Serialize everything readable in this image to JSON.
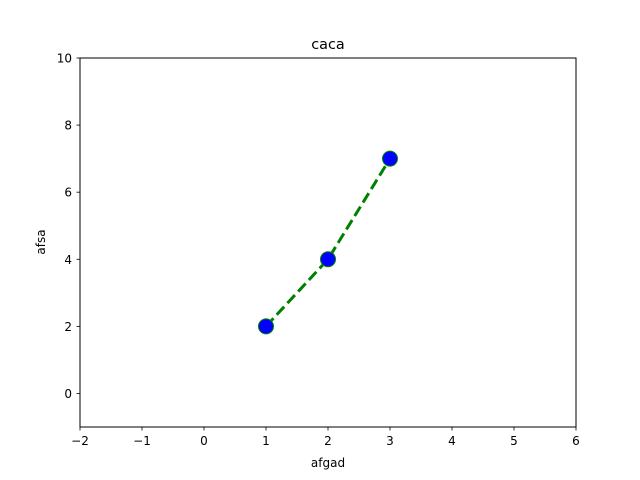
{
  "chart_data": {
    "type": "line",
    "title": "caca",
    "xlabel": "afgad",
    "ylabel": "afsa",
    "xlim": [
      -2,
      6
    ],
    "ylim": [
      -1,
      10
    ],
    "xticks": [
      -2,
      -1,
      0,
      1,
      2,
      3,
      4,
      5,
      6
    ],
    "xtick_labels": [
      "−2",
      "−1",
      "0",
      "1",
      "2",
      "3",
      "4",
      "5",
      "6"
    ],
    "yticks": [
      0,
      2,
      4,
      6,
      8,
      10
    ],
    "ytick_labels": [
      "0",
      "2",
      "4",
      "6",
      "8",
      "10"
    ],
    "grid": false,
    "series": [
      {
        "x": [
          1,
          2,
          3
        ],
        "y": [
          2,
          4,
          7
        ],
        "line_color": "#008000",
        "line_style": "dashed",
        "marker": "circle",
        "marker_color": "#0000ff",
        "marker_edge_color": "#008000"
      }
    ]
  }
}
